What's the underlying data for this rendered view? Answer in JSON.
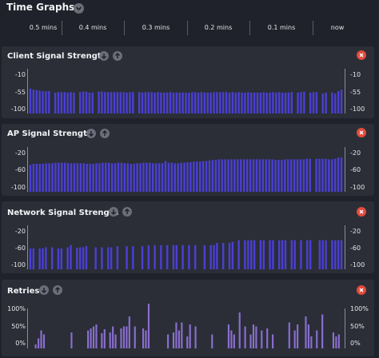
{
  "header": {
    "title": "Time Graphs",
    "toggle_icon": "chevron-down-icon"
  },
  "timeline": {
    "ticks": [
      "0.5 mins",
      "0.4 mins",
      "0.3 mins",
      "0.2 mins",
      "0.1 mins",
      "now"
    ]
  },
  "panels": [
    {
      "title": "Client Signal Strength",
      "ticks": [
        "-10",
        "-55",
        "-100"
      ],
      "bar_color": "#4a3fd4",
      "range": [
        -100,
        -10
      ],
      "values": [
        -50,
        -52,
        -53,
        -54,
        -55,
        -55,
        -55,
        null,
        -58,
        -57,
        -57,
        -57,
        -58,
        -57,
        -58,
        null,
        -57,
        -56,
        -56,
        -58,
        -58,
        null,
        -56,
        -56,
        -57,
        -57,
        -57,
        -57,
        -57,
        -57,
        -57,
        -58,
        -57,
        -57,
        null,
        -57,
        -58,
        -57,
        -57,
        -57,
        -58,
        -57,
        -58,
        -58,
        -58,
        -57,
        -58,
        -58,
        -58,
        -58,
        -58,
        -58,
        -57,
        -57,
        -58,
        -57,
        -58,
        -58,
        -58,
        -57,
        -57,
        -57,
        -57,
        -57,
        -58,
        -57,
        -58,
        -57,
        -58,
        -58,
        -57,
        -58,
        -58,
        -58,
        -58,
        -57,
        -58,
        -58,
        -57,
        -58,
        -57,
        -58,
        -58,
        -58,
        -57,
        null,
        -58,
        -57,
        -56,
        null,
        -58,
        -57,
        -57,
        null,
        -60,
        -58,
        null,
        -58,
        -60,
        -55,
        -52
      ]
    },
    {
      "title": "AP Signal Strength",
      "ticks": [
        "-20",
        "-60",
        "-100"
      ],
      "bar_color": "#4a3fd4",
      "range": [
        -100,
        -20
      ],
      "values": [
        -52,
        -50,
        -50,
        -50,
        -50,
        -49,
        -49,
        -49,
        -48,
        -48,
        -48,
        -48,
        -49,
        -49,
        -49,
        -49,
        -49,
        -49,
        -50,
        -50,
        -50,
        -49,
        -49,
        -48,
        -48,
        -48,
        -49,
        -49,
        -48,
        -48,
        -49,
        -49,
        -50,
        -50,
        -49,
        -49,
        -48,
        -48,
        -48,
        -49,
        -49,
        -49,
        -49,
        -45,
        -48,
        -48,
        -49,
        -49,
        -48,
        -48,
        -47,
        -47,
        -46,
        -46,
        -46,
        -45,
        -45,
        -44,
        -43,
        -43,
        -42,
        -42,
        -42,
        -42,
        -42,
        -42,
        -42,
        -42,
        -42,
        -42,
        -42,
        -42,
        -42,
        -42,
        -42,
        -42,
        -42,
        -42,
        -43,
        -43,
        -43,
        -42,
        -42,
        -42,
        -42,
        -42,
        -42,
        -42,
        -41,
        -41,
        null,
        -41,
        -41,
        -41,
        -41,
        -42,
        -42,
        -41,
        -39,
        -39
      ]
    },
    {
      "title": "Network Signal Strength",
      "ticks": [
        "-20",
        "-60",
        "-100"
      ],
      "bar_color": "#4a3fd4",
      "range": [
        -100,
        -20
      ],
      "values": [
        -62,
        -62,
        -62,
        -62,
        -62,
        -60,
        -60,
        -60,
        -60,
        -62,
        -62,
        -62,
        -60,
        -56,
        -58,
        -61,
        -60,
        -60,
        -58,
        -58,
        -60,
        -60,
        -60,
        -60,
        -60,
        -60,
        -60,
        -58,
        -58,
        -58,
        -58,
        -58,
        -58,
        -58,
        -58,
        -58,
        -58,
        -56,
        -56,
        -56,
        -56,
        -56,
        -56,
        -56,
        -56,
        -56,
        -56,
        -56,
        -56,
        -56,
        -56,
        -56,
        -56,
        -56,
        -56,
        -56,
        -56,
        -56,
        -56,
        -56,
        -52,
        -52,
        -52,
        -52,
        -52,
        -50,
        -48,
        -47,
        -47,
        -47,
        -47,
        -47,
        -47,
        -47,
        -47,
        -47,
        -47,
        -47,
        -47,
        -47,
        -47,
        -47,
        -47,
        -47,
        -47,
        -47,
        -47,
        -47,
        -47,
        -47,
        -47,
        -47,
        -47,
        -47,
        -47,
        -47,
        -47,
        -47,
        -47,
        -47,
        -47
      ],
      "sparse_mask": [
        1,
        1,
        0,
        1,
        1,
        1,
        0,
        1,
        0,
        1,
        1,
        0,
        1,
        1,
        0,
        1,
        1,
        1,
        1,
        0,
        0,
        1,
        0,
        1,
        0,
        1,
        1,
        0,
        1,
        0,
        0,
        1,
        0,
        1,
        0,
        0,
        1,
        0,
        1,
        0,
        1,
        0,
        1,
        0,
        1,
        0,
        1,
        1,
        0,
        1,
        0,
        1,
        0,
        1,
        0,
        0,
        1,
        0,
        1,
        1,
        1,
        0,
        1,
        0,
        1,
        1,
        0,
        1,
        0,
        1,
        1,
        1,
        1,
        0,
        1,
        1,
        0,
        1,
        1,
        0,
        1,
        1,
        1,
        0,
        1,
        1,
        0,
        1,
        0,
        1,
        1,
        0,
        0,
        1,
        1,
        1,
        0,
        1,
        1,
        1,
        1
      ]
    },
    {
      "title": "Retries",
      "ticks": [
        "100%",
        "50%",
        "0%"
      ],
      "bar_color": "#8a6fd0",
      "range": [
        0,
        100
      ],
      "values": [
        0,
        0,
        10,
        25,
        45,
        35,
        0,
        0,
        0,
        0,
        0,
        0,
        0,
        0,
        0,
        40,
        0,
        0,
        0,
        0,
        0,
        45,
        50,
        55,
        60,
        0,
        38,
        48,
        0,
        40,
        55,
        35,
        0,
        50,
        55,
        55,
        80,
        0,
        55,
        0,
        0,
        50,
        45,
        125,
        0,
        0,
        0,
        0,
        0,
        0,
        35,
        0,
        40,
        65,
        45,
        65,
        0,
        30,
        60,
        0,
        55,
        0,
        0,
        0,
        0,
        0,
        35,
        0,
        0,
        0,
        0,
        0,
        60,
        45,
        35,
        0,
        90,
        0,
        55,
        0,
        35,
        60,
        55,
        0,
        45,
        0,
        50,
        0,
        35,
        0,
        0,
        0,
        0,
        0,
        65,
        0,
        45,
        60,
        0,
        0,
        80,
        60,
        30,
        0,
        45,
        0,
        85,
        0,
        0,
        0,
        40,
        30,
        35,
        0
      ]
    }
  ]
}
